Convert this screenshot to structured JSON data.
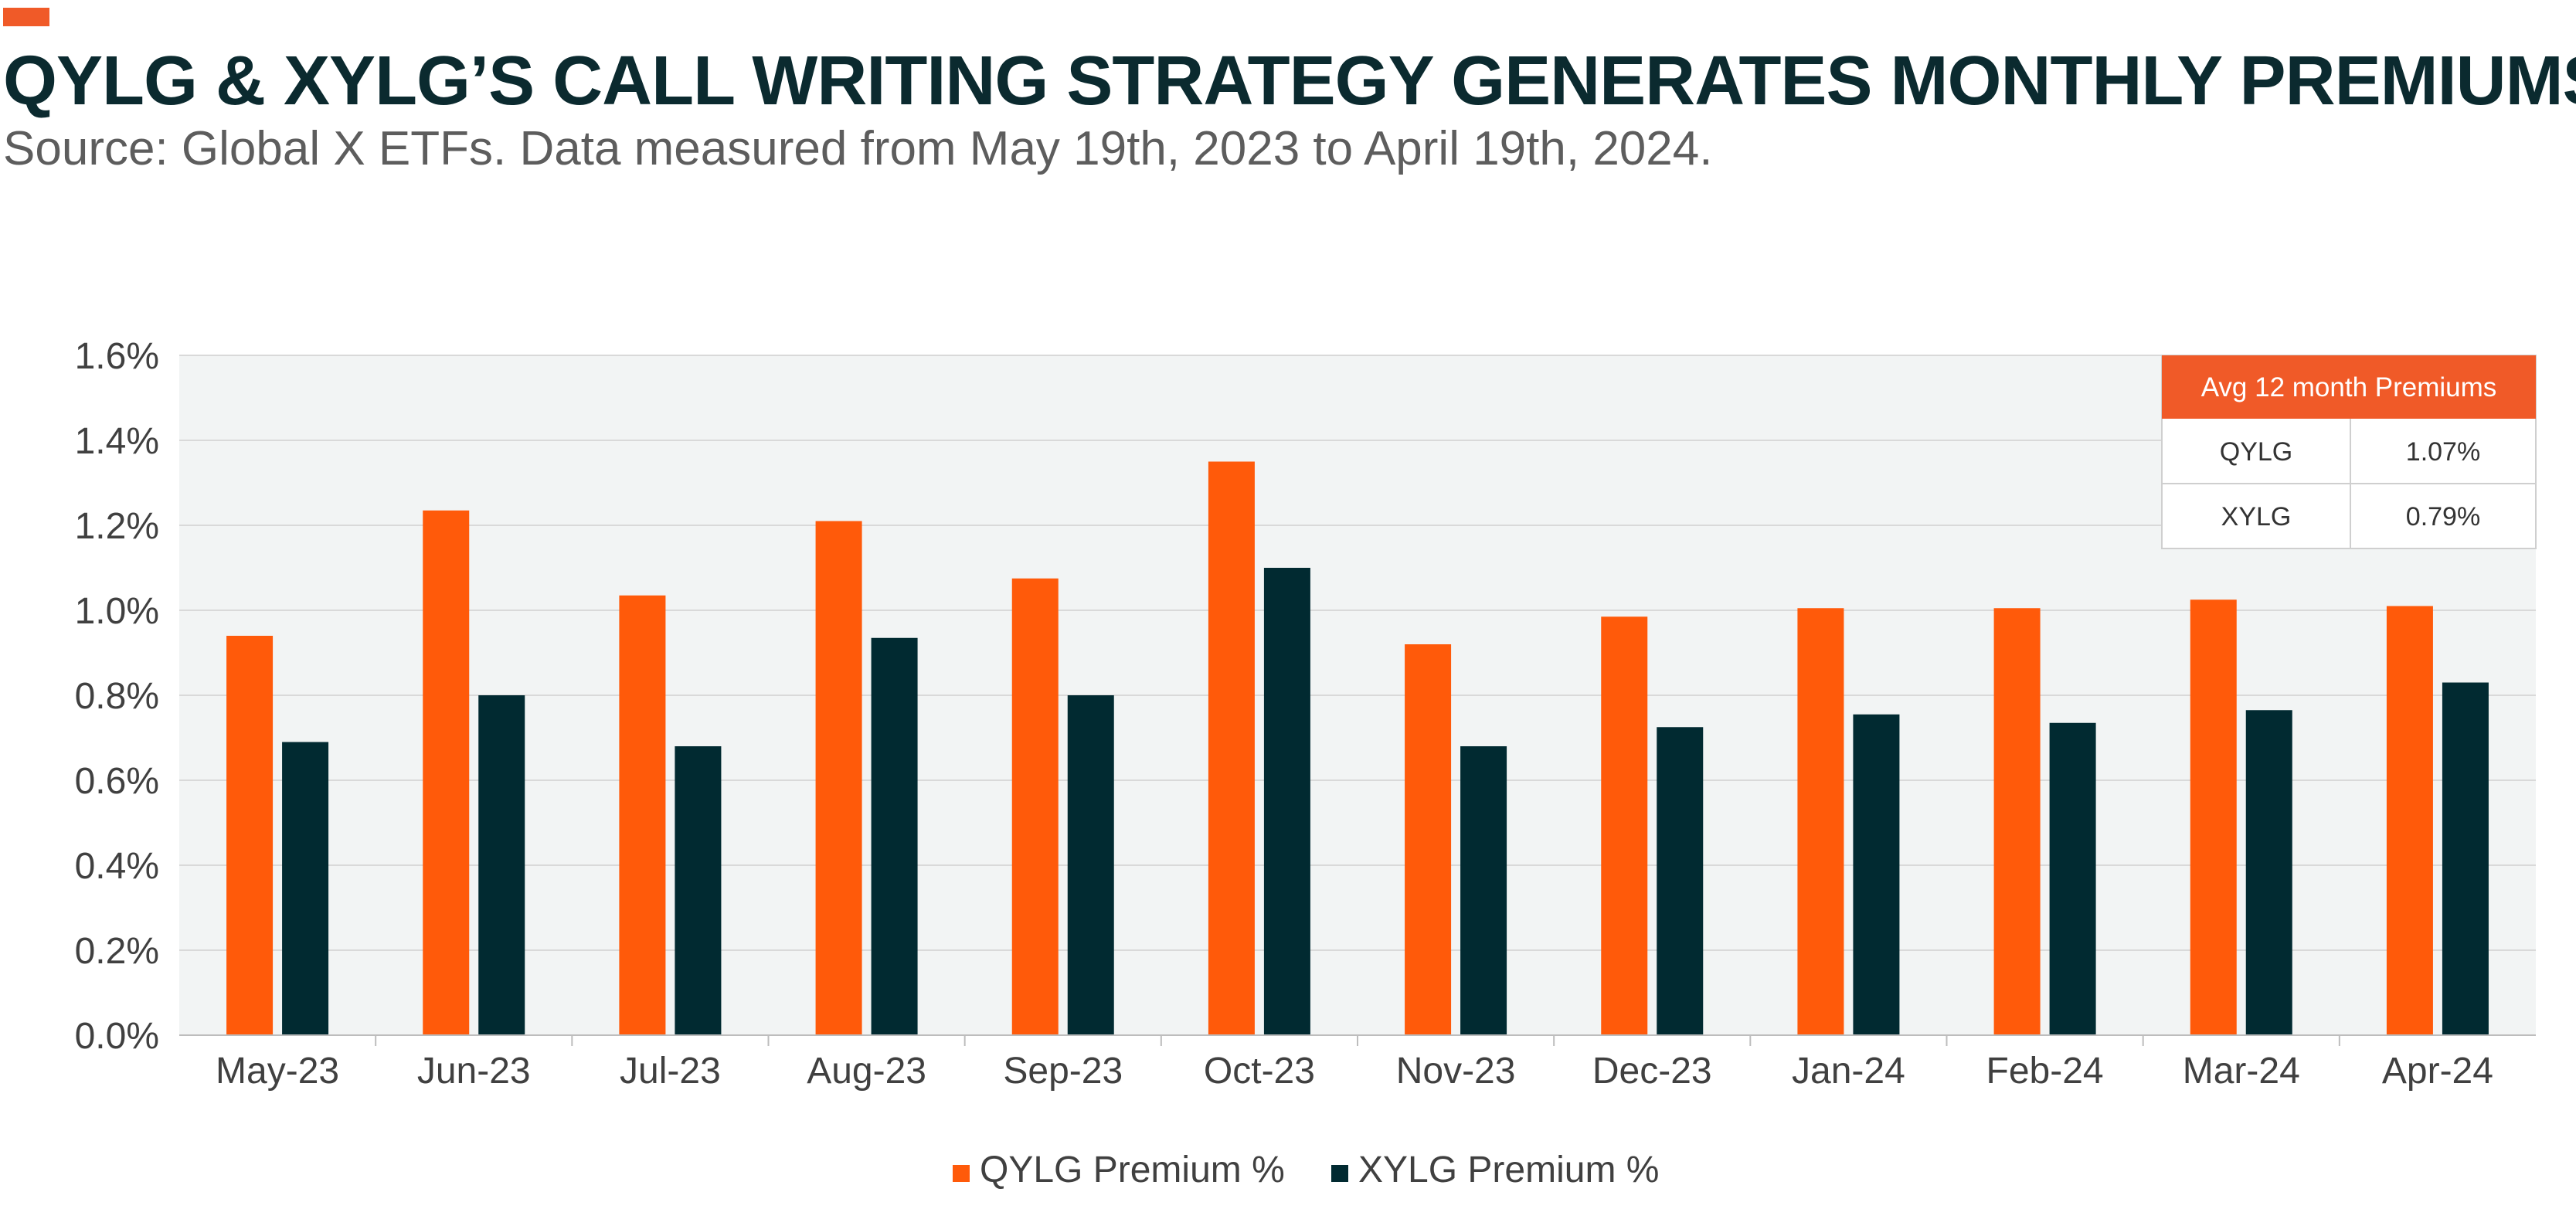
{
  "header": {
    "title": "QYLG & XYLG’S CALL WRITING STRATEGY GENERATES MONTHLY PREMIUMS",
    "subtitle": "Source: Global X ETFs. Data measured from May 19th, 2023 to April 19th, 2024."
  },
  "colors": {
    "accent": "#f05a28",
    "qylg": "#ff5a0a",
    "xylg": "#012a31",
    "plot_background": "#f2f4f4",
    "gridline": "#d9d9d9"
  },
  "chart_data": {
    "type": "bar",
    "title": "",
    "xlabel": "",
    "ylabel": "",
    "categories": [
      "May-23",
      "Jun-23",
      "Jul-23",
      "Aug-23",
      "Sep-23",
      "Oct-23",
      "Nov-23",
      "Dec-23",
      "Jan-24",
      "Feb-24",
      "Mar-24",
      "Apr-24"
    ],
    "series": [
      {
        "name": "QYLG Premium %",
        "color": "#ff5a0a",
        "values": [
          0.94,
          1.235,
          1.035,
          1.21,
          1.075,
          1.35,
          0.92,
          0.985,
          1.005,
          1.005,
          1.025,
          1.01
        ]
      },
      {
        "name": "XYLG Premium %",
        "color": "#012a31",
        "values": [
          0.69,
          0.8,
          0.68,
          0.935,
          0.8,
          1.1,
          0.68,
          0.725,
          0.755,
          0.735,
          0.765,
          0.83
        ]
      }
    ],
    "ylim": [
      0,
      1.6
    ],
    "y_ticks": [
      0,
      0.2,
      0.4,
      0.6,
      0.8,
      1.0,
      1.2,
      1.4,
      1.6
    ],
    "y_tick_labels": [
      "0.0%",
      "0.2%",
      "0.4%",
      "0.6%",
      "0.8%",
      "1.0%",
      "1.2%",
      "1.4%",
      "1.6%"
    ],
    "grid": true,
    "legend_position": "bottom-center"
  },
  "summary_table": {
    "header": "Avg 12 month Premiums",
    "rows": [
      {
        "label": "QYLG",
        "value": "1.07%"
      },
      {
        "label": "XYLG",
        "value": "0.79%"
      }
    ]
  }
}
